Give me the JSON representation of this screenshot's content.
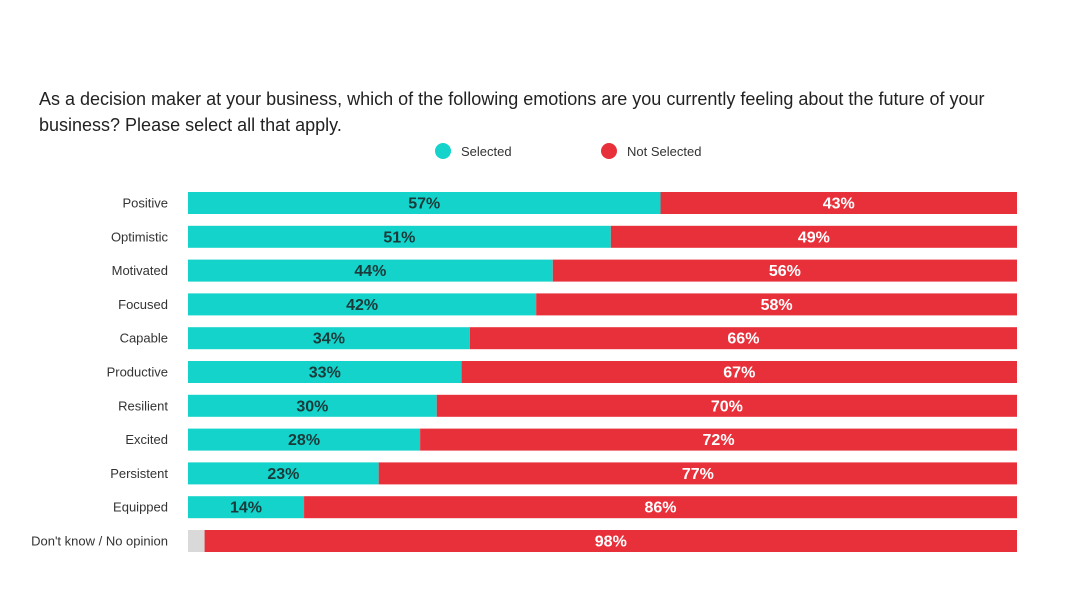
{
  "chart_data": {
    "type": "bar",
    "orientation": "horizontal",
    "stacked": true,
    "title": "As a decision maker at your business, which of the following emotions are you currently feeling about the future of your business? Please select all that apply.",
    "categories": [
      "Positive",
      "Optimistic",
      "Motivated",
      "Focused",
      "Capable",
      "Productive",
      "Resilient",
      "Excited",
      "Persistent",
      "Equipped",
      "Don't know / No opinion"
    ],
    "series": [
      {
        "name": "Selected",
        "color": "#13d3cb",
        "values": [
          57,
          51,
          44,
          42,
          34,
          33,
          30,
          28,
          23,
          14,
          2
        ],
        "labels": [
          "57%",
          "51%",
          "44%",
          "42%",
          "34%",
          "33%",
          "30%",
          "28%",
          "23%",
          "14%",
          ""
        ]
      },
      {
        "name": "Not Selected",
        "color": "#e8303a",
        "values": [
          43,
          49,
          56,
          58,
          66,
          67,
          70,
          72,
          77,
          86,
          98
        ],
        "labels": [
          "43%",
          "49%",
          "56%",
          "58%",
          "66%",
          "67%",
          "70%",
          "72%",
          "77%",
          "86%",
          "98%"
        ]
      }
    ],
    "special_colors": {
      "minor_segment": "#d9d9d9"
    },
    "xlim": [
      0,
      100
    ],
    "legend_position": "top-center",
    "grid": false
  }
}
